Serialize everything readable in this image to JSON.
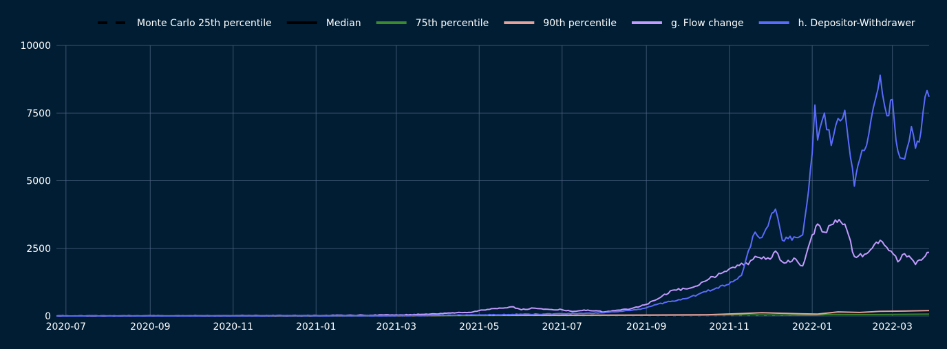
{
  "chart_data": {
    "type": "line",
    "title": "",
    "xlabel": "",
    "ylabel": "",
    "xlim": [
      "2020-06-24",
      "2022-03-28"
    ],
    "ylim": [
      0,
      10000
    ],
    "grid": true,
    "legend_placement": "top",
    "x_ticks": [
      "2020-07",
      "2020-09",
      "2020-11",
      "2021-01",
      "2021-03",
      "2021-05",
      "2021-07",
      "2021-09",
      "2021-11",
      "2022-01",
      "2022-03"
    ],
    "y_ticks": [
      0,
      2500,
      5000,
      7500,
      10000
    ],
    "series": [
      {
        "name": "Monte Carlo 25th percentile",
        "color": "#000000",
        "dash": "dash",
        "points": [
          [
            "2020-06-24",
            0
          ],
          [
            "2021-03-01",
            2
          ],
          [
            "2021-09-01",
            10
          ],
          [
            "2021-11-01",
            20
          ],
          [
            "2021-12-01",
            25
          ],
          [
            "2022-01-01",
            40
          ],
          [
            "2022-02-01",
            55
          ],
          [
            "2022-03-28",
            70
          ]
        ]
      },
      {
        "name": "Median",
        "color": "#000000",
        "dash": "solid",
        "points": [
          [
            "2020-06-24",
            0
          ],
          [
            "2021-03-01",
            4
          ],
          [
            "2021-09-01",
            20
          ],
          [
            "2021-11-01",
            35
          ],
          [
            "2021-12-01",
            45
          ],
          [
            "2022-01-01",
            60
          ],
          [
            "2022-02-01",
            80
          ],
          [
            "2022-03-28",
            100
          ]
        ]
      },
      {
        "name": "75th percentile",
        "color": "#3c8a2e",
        "dash": "solid",
        "points": [
          [
            "2020-06-24",
            0
          ],
          [
            "2021-03-01",
            5
          ],
          [
            "2021-05-01",
            15
          ],
          [
            "2021-07-01",
            20
          ],
          [
            "2021-09-01",
            25
          ],
          [
            "2021-10-15",
            30
          ],
          [
            "2021-11-15",
            40
          ],
          [
            "2021-12-15",
            35
          ],
          [
            "2022-01-01",
            30
          ],
          [
            "2022-01-15",
            60
          ],
          [
            "2022-02-01",
            55
          ],
          [
            "2022-03-01",
            60
          ],
          [
            "2022-03-28",
            70
          ]
        ]
      },
      {
        "name": "90th percentile",
        "color": "#e5a19a",
        "dash": "solid",
        "points": [
          [
            "2020-06-24",
            0
          ],
          [
            "2021-03-01",
            10
          ],
          [
            "2021-05-01",
            30
          ],
          [
            "2021-07-01",
            25
          ],
          [
            "2021-09-01",
            35
          ],
          [
            "2021-10-15",
            45
          ],
          [
            "2021-11-10",
            90
          ],
          [
            "2021-11-25",
            120
          ],
          [
            "2021-12-10",
            100
          ],
          [
            "2021-12-25",
            80
          ],
          [
            "2022-01-05",
            70
          ],
          [
            "2022-01-20",
            150
          ],
          [
            "2022-02-05",
            130
          ],
          [
            "2022-02-20",
            170
          ],
          [
            "2022-03-10",
            180
          ],
          [
            "2022-03-28",
            200
          ]
        ]
      },
      {
        "name": "g. Flow change",
        "color": "#c39bff",
        "dash": "solid",
        "points": [
          [
            "2020-06-24",
            0
          ],
          [
            "2020-10-01",
            5
          ],
          [
            "2021-01-01",
            15
          ],
          [
            "2021-02-01",
            25
          ],
          [
            "2021-03-01",
            40
          ],
          [
            "2021-03-20",
            60
          ],
          [
            "2021-04-10",
            110
          ],
          [
            "2021-04-25",
            130
          ],
          [
            "2021-05-01",
            200
          ],
          [
            "2021-05-10",
            270
          ],
          [
            "2021-05-20",
            300
          ],
          [
            "2021-05-25",
            340
          ],
          [
            "2021-06-01",
            230
          ],
          [
            "2021-06-10",
            290
          ],
          [
            "2021-06-20",
            250
          ],
          [
            "2021-07-01",
            230
          ],
          [
            "2021-07-10",
            170
          ],
          [
            "2021-07-20",
            220
          ],
          [
            "2021-08-01",
            150
          ],
          [
            "2021-08-10",
            210
          ],
          [
            "2021-08-20",
            260
          ],
          [
            "2021-09-01",
            430
          ],
          [
            "2021-09-10",
            650
          ],
          [
            "2021-09-20",
            950
          ],
          [
            "2021-10-01",
            1000
          ],
          [
            "2021-10-10",
            1150
          ],
          [
            "2021-10-20",
            1450
          ],
          [
            "2021-10-30",
            1650
          ],
          [
            "2021-11-10",
            1950
          ],
          [
            "2021-11-15",
            1900
          ],
          [
            "2021-11-20",
            2200
          ],
          [
            "2021-12-01",
            2100
          ],
          [
            "2021-12-05",
            2400
          ],
          [
            "2021-12-10",
            2000
          ],
          [
            "2021-12-20",
            2100
          ],
          [
            "2021-12-25",
            1850
          ],
          [
            "2022-01-01",
            3000
          ],
          [
            "2022-01-05",
            3400
          ],
          [
            "2022-01-10",
            3100
          ],
          [
            "2022-01-18",
            3550
          ],
          [
            "2022-01-25",
            3400
          ],
          [
            "2022-02-01",
            2200
          ],
          [
            "2022-02-10",
            2300
          ],
          [
            "2022-02-20",
            2800
          ],
          [
            "2022-02-28",
            2400
          ],
          [
            "2022-03-05",
            2000
          ],
          [
            "2022-03-10",
            2300
          ],
          [
            "2022-03-18",
            1900
          ],
          [
            "2022-03-28",
            2350
          ]
        ]
      },
      {
        "name": "h. Depositor-Withdrawer",
        "color": "#5b6bfb",
        "dash": "solid",
        "points": [
          [
            "2020-06-24",
            0
          ],
          [
            "2021-03-01",
            10
          ],
          [
            "2021-05-01",
            40
          ],
          [
            "2021-07-01",
            80
          ],
          [
            "2021-08-01",
            120
          ],
          [
            "2021-08-20",
            200
          ],
          [
            "2021-09-01",
            300
          ],
          [
            "2021-09-10",
            450
          ],
          [
            "2021-09-20",
            550
          ],
          [
            "2021-10-01",
            650
          ],
          [
            "2021-10-15",
            900
          ],
          [
            "2021-10-30",
            1150
          ],
          [
            "2021-11-10",
            1500
          ],
          [
            "2021-11-15",
            2400
          ],
          [
            "2021-11-20",
            3100
          ],
          [
            "2021-11-25",
            2900
          ],
          [
            "2021-12-01",
            3600
          ],
          [
            "2021-12-05",
            3950
          ],
          [
            "2021-12-10",
            2800
          ],
          [
            "2021-12-20",
            2900
          ],
          [
            "2021-12-25",
            3000
          ],
          [
            "2021-12-28",
            4100
          ],
          [
            "2022-01-01",
            6000
          ],
          [
            "2022-01-03",
            7800
          ],
          [
            "2022-01-05",
            6500
          ],
          [
            "2022-01-10",
            7500
          ],
          [
            "2022-01-15",
            6300
          ],
          [
            "2022-01-20",
            7300
          ],
          [
            "2022-01-25",
            7600
          ],
          [
            "2022-02-01",
            4800
          ],
          [
            "2022-02-05",
            5800
          ],
          [
            "2022-02-10",
            6300
          ],
          [
            "2022-02-15",
            7700
          ],
          [
            "2022-02-20",
            8900
          ],
          [
            "2022-02-25",
            7400
          ],
          [
            "2022-03-01",
            8000
          ],
          [
            "2022-03-05",
            6100
          ],
          [
            "2022-03-10",
            5800
          ],
          [
            "2022-03-15",
            7000
          ],
          [
            "2022-03-18",
            6200
          ],
          [
            "2022-03-22",
            6800
          ],
          [
            "2022-03-25",
            8100
          ],
          [
            "2022-03-28",
            8100
          ]
        ]
      }
    ]
  }
}
